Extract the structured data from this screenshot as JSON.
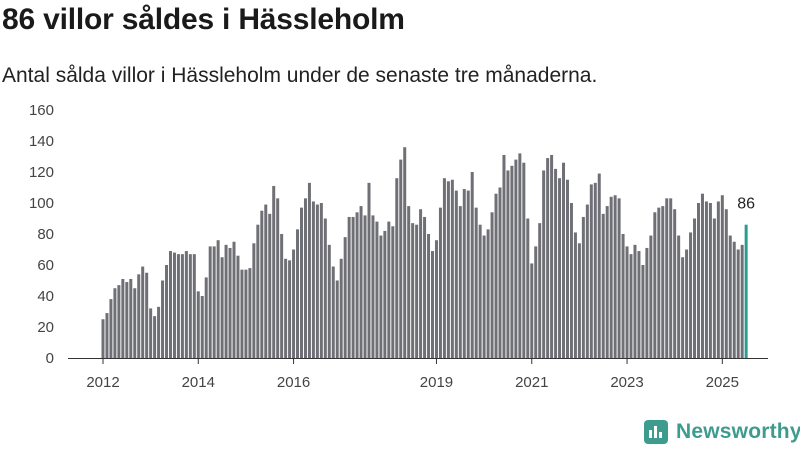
{
  "header": {
    "title": "86 villor såldes i Hässleholm",
    "subtitle": "Antal sålda villor i Hässleholm under de senaste tre månaderna."
  },
  "brand": {
    "name": "Newsworthy",
    "icon": "chart-logo-icon"
  },
  "colors": {
    "bar": "#6f6f76",
    "highlight": "#2b9c94",
    "axis": "#333333",
    "brand": "#3e9c8e"
  },
  "chart_data": {
    "type": "bar",
    "title": "86 villor såldes i Hässleholm",
    "subtitle": "Antal sålda villor i Hässleholm under de senaste tre månaderna.",
    "xlabel": "",
    "ylabel": "",
    "ylim": [
      0,
      160
    ],
    "yticks": [
      0,
      20,
      40,
      60,
      80,
      100,
      120,
      140,
      160
    ],
    "xticks": [
      "2012",
      "2014",
      "2016",
      "2019",
      "2021",
      "2023",
      "2025"
    ],
    "grid": false,
    "highlight_label": "86",
    "series": [
      {
        "values": [
          25,
          29,
          38,
          45,
          47,
          51,
          49,
          51,
          45,
          54,
          59,
          55,
          32,
          27,
          33,
          50,
          60,
          69,
          68,
          67,
          67,
          69,
          67,
          67,
          43,
          40,
          52,
          72,
          72,
          76,
          65,
          73,
          71,
          75,
          66,
          57,
          57,
          58,
          74,
          86,
          95,
          99,
          93,
          111,
          103,
          80,
          64,
          63,
          70,
          83,
          97,
          103,
          113,
          101,
          99,
          100,
          90,
          73,
          59,
          50,
          64,
          78,
          91,
          91,
          94,
          98,
          92,
          113,
          92,
          88,
          79,
          82,
          88,
          85,
          116,
          128,
          136,
          98,
          87,
          86,
          96,
          91,
          80,
          69,
          76,
          97,
          116,
          114,
          115,
          108,
          98,
          109,
          108,
          120,
          97,
          86,
          79,
          83,
          94,
          106,
          110,
          131,
          121,
          124,
          128,
          132,
          126,
          90,
          61,
          72,
          87,
          121,
          129,
          131,
          122,
          116,
          126,
          115,
          100,
          81,
          74,
          91,
          99,
          112,
          113,
          119,
          93,
          98,
          104,
          105,
          103,
          80,
          72,
          67,
          73,
          69,
          60,
          71,
          79,
          94,
          97,
          98,
          103,
          103,
          96,
          79,
          65,
          70,
          81,
          90,
          100,
          106,
          101,
          100,
          90,
          101,
          105,
          96,
          79,
          75,
          70,
          73,
          86
        ]
      }
    ]
  }
}
